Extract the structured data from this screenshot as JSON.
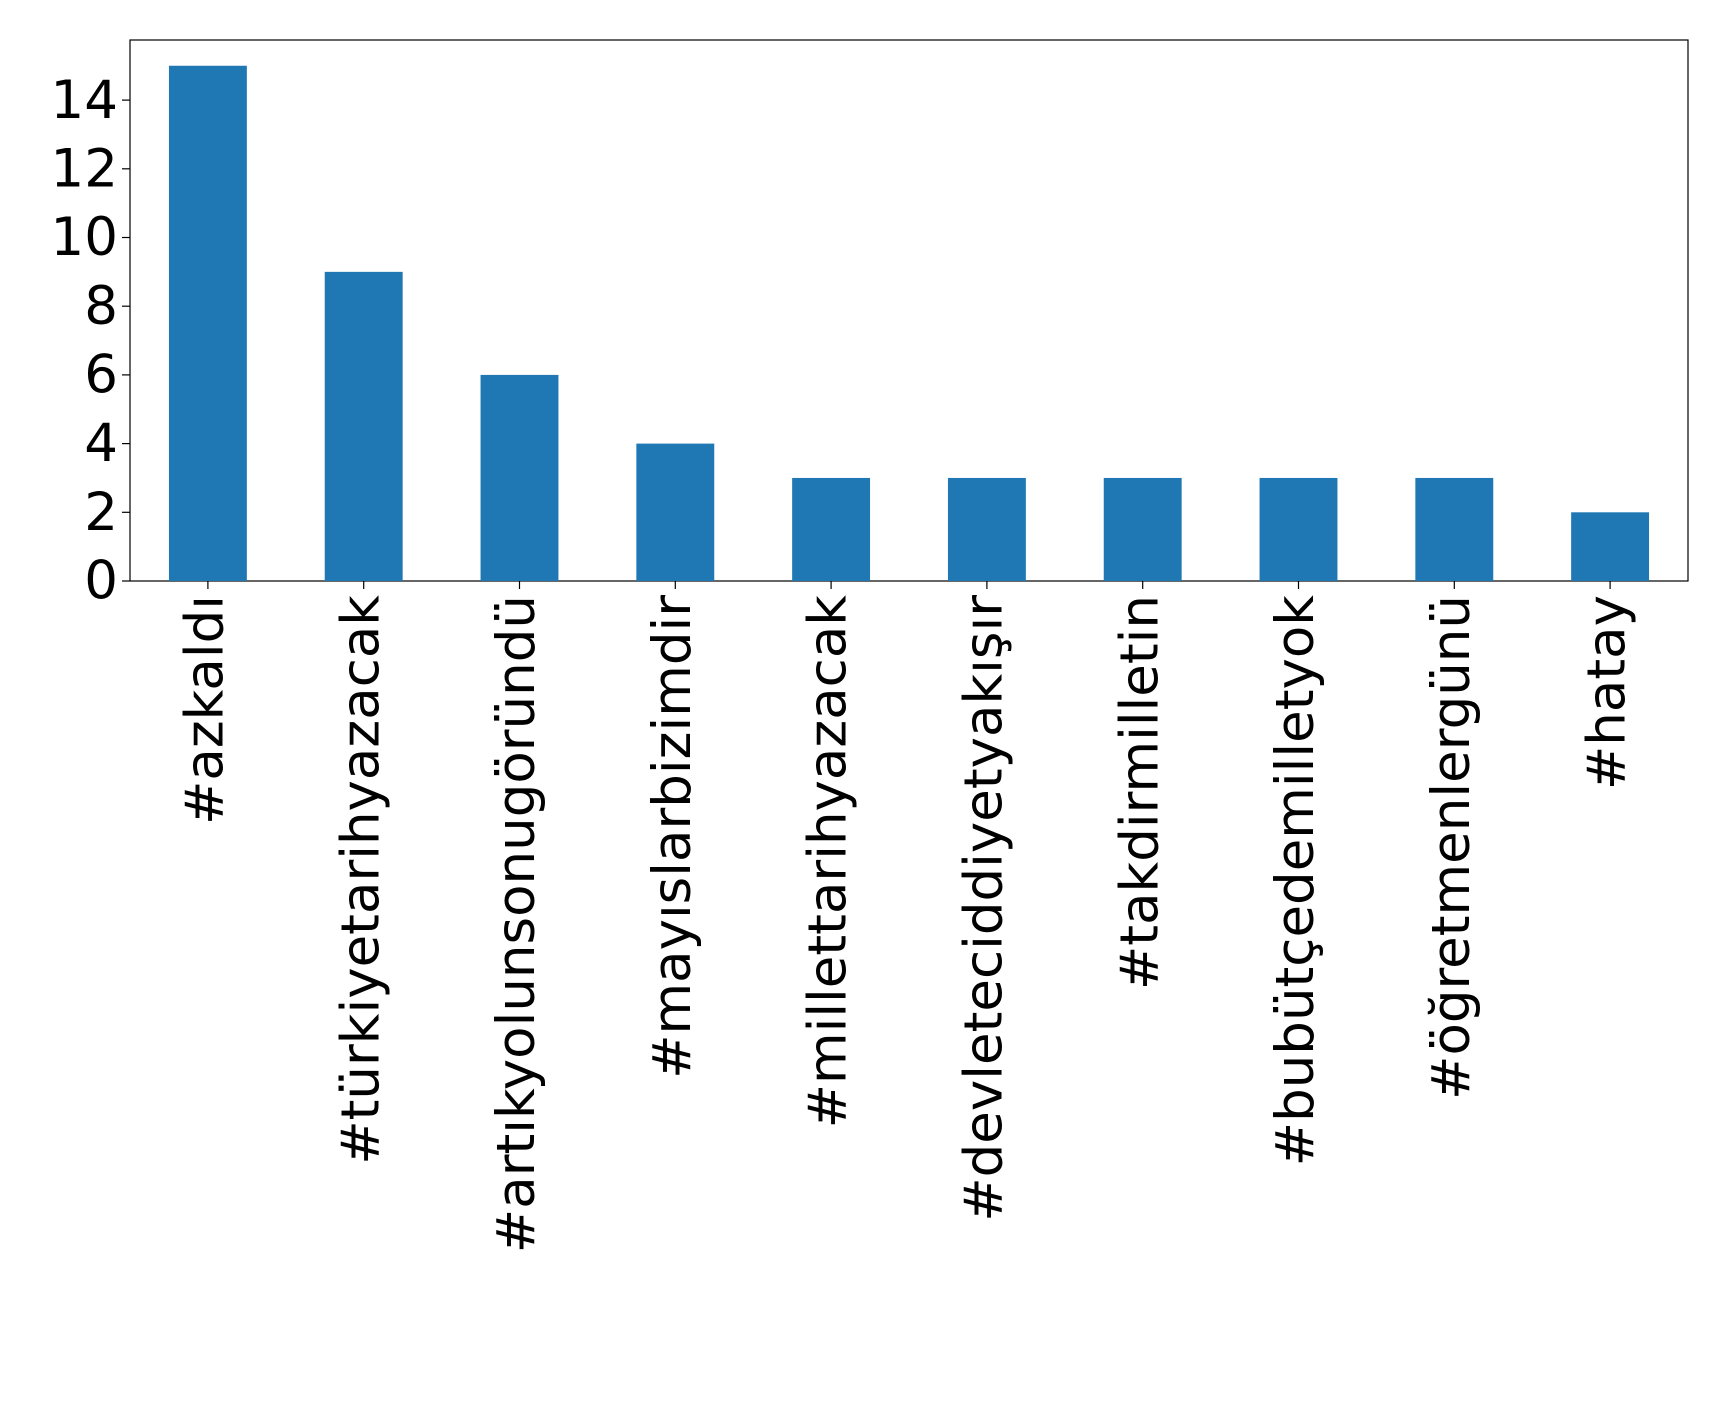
{
  "chart_data": {
    "type": "bar",
    "categories": [
      "#azkaldı",
      "#türkiyetarihyazacak",
      "#artıkyolunsonugöründü",
      "#mayıslarbizimdir",
      "#millettarihyazacak",
      "#devleteciddiyetyakışır",
      "#takdirmilletin",
      "#bubütçedemilletyok",
      "#öğretmenlergünü",
      "#hatay"
    ],
    "values": [
      15,
      9,
      6,
      4,
      3,
      3,
      3,
      3,
      3,
      2
    ],
    "color": "#1f77b4",
    "ylim": [
      0,
      15.75
    ],
    "yticks": [
      0,
      2,
      4,
      6,
      8,
      10,
      12,
      14
    ],
    "grid": false
  }
}
